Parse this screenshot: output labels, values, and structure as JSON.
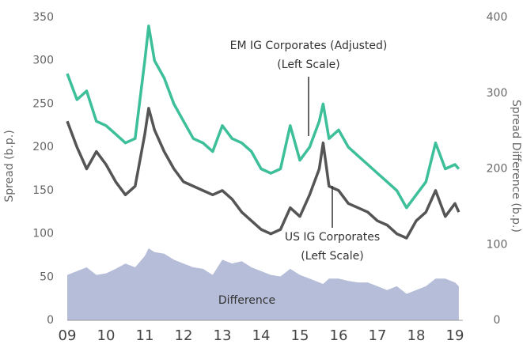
{
  "chart_data": {
    "type": "line",
    "x": [
      2009.0,
      2009.25,
      2009.5,
      2009.75,
      2010.0,
      2010.25,
      2010.5,
      2010.75,
      2011.0,
      2011.1,
      2011.25,
      2011.5,
      2011.75,
      2012.0,
      2012.25,
      2012.5,
      2012.75,
      2013.0,
      2013.25,
      2013.5,
      2013.75,
      2014.0,
      2014.25,
      2014.5,
      2014.75,
      2015.0,
      2015.25,
      2015.5,
      2015.6,
      2015.75,
      2016.0,
      2016.25,
      2016.5,
      2016.75,
      2017.0,
      2017.25,
      2017.5,
      2017.75,
      2018.0,
      2018.25,
      2018.5,
      2018.75,
      2019.0,
      2019.1
    ],
    "series": [
      {
        "name": "Difference",
        "type": "area",
        "axis": "y2",
        "color": "#b5bdd8",
        "values": [
          60,
          65,
          70,
          60,
          62,
          68,
          75,
          70,
          85,
          95,
          90,
          88,
          80,
          75,
          70,
          68,
          60,
          80,
          75,
          78,
          70,
          65,
          60,
          58,
          68,
          60,
          55,
          50,
          48,
          55,
          55,
          52,
          50,
          50,
          45,
          40,
          45,
          35,
          40,
          45,
          55,
          55,
          50,
          45
        ]
      },
      {
        "name": "EM IG Corporates (Adjusted)",
        "color": "#3dbf9a",
        "values": [
          285,
          255,
          265,
          230,
          225,
          215,
          205,
          210,
          300,
          340,
          300,
          280,
          250,
          230,
          210,
          205,
          195,
          225,
          210,
          205,
          195,
          175,
          170,
          175,
          225,
          185,
          200,
          230,
          250,
          210,
          220,
          200,
          190,
          180,
          170,
          160,
          150,
          130,
          145,
          160,
          205,
          175,
          180,
          175
        ]
      },
      {
        "name": "US IG Corporates",
        "color": "#555555",
        "values": [
          230,
          200,
          175,
          195,
          180,
          160,
          145,
          155,
          215,
          245,
          220,
          195,
          175,
          160,
          155,
          150,
          145,
          150,
          140,
          125,
          115,
          105,
          100,
          105,
          130,
          120,
          145,
          175,
          205,
          155,
          150,
          135,
          130,
          125,
          115,
          110,
          100,
          95,
          115,
          125,
          150,
          120,
          135,
          125
        ]
      }
    ],
    "annotations": [
      {
        "lines": [
          "EM IG Corporates (Adjusted)",
          "(Left Scale)"
        ]
      },
      {
        "lines": [
          "US IG Corporates",
          "(Left Scale)"
        ]
      },
      {
        "lines": [
          "Difference"
        ]
      }
    ],
    "ylabel": "Spread (b.p.)",
    "y2label": "Spread Difference (b.p.)",
    "xlim": [
      2009,
      2019.2
    ],
    "xticks": [
      {
        "value": 2009,
        "label": "09"
      },
      {
        "value": 2010,
        "label": "10"
      },
      {
        "value": 2011,
        "label": "11"
      },
      {
        "value": 2012,
        "label": "12"
      },
      {
        "value": 2013,
        "label": "13"
      },
      {
        "value": 2014,
        "label": "14"
      },
      {
        "value": 2015,
        "label": "15"
      },
      {
        "value": 2016,
        "label": "16"
      },
      {
        "value": 2017,
        "label": "17"
      },
      {
        "value": 2018,
        "label": "18"
      },
      {
        "value": 2019,
        "label": "19"
      }
    ],
    "ylim": [
      0,
      350
    ],
    "yticks": [
      0,
      50,
      100,
      150,
      200,
      250,
      300,
      350
    ],
    "y2lim": [
      0,
      400
    ],
    "y2ticks": [
      0,
      100,
      200,
      300,
      400
    ]
  }
}
